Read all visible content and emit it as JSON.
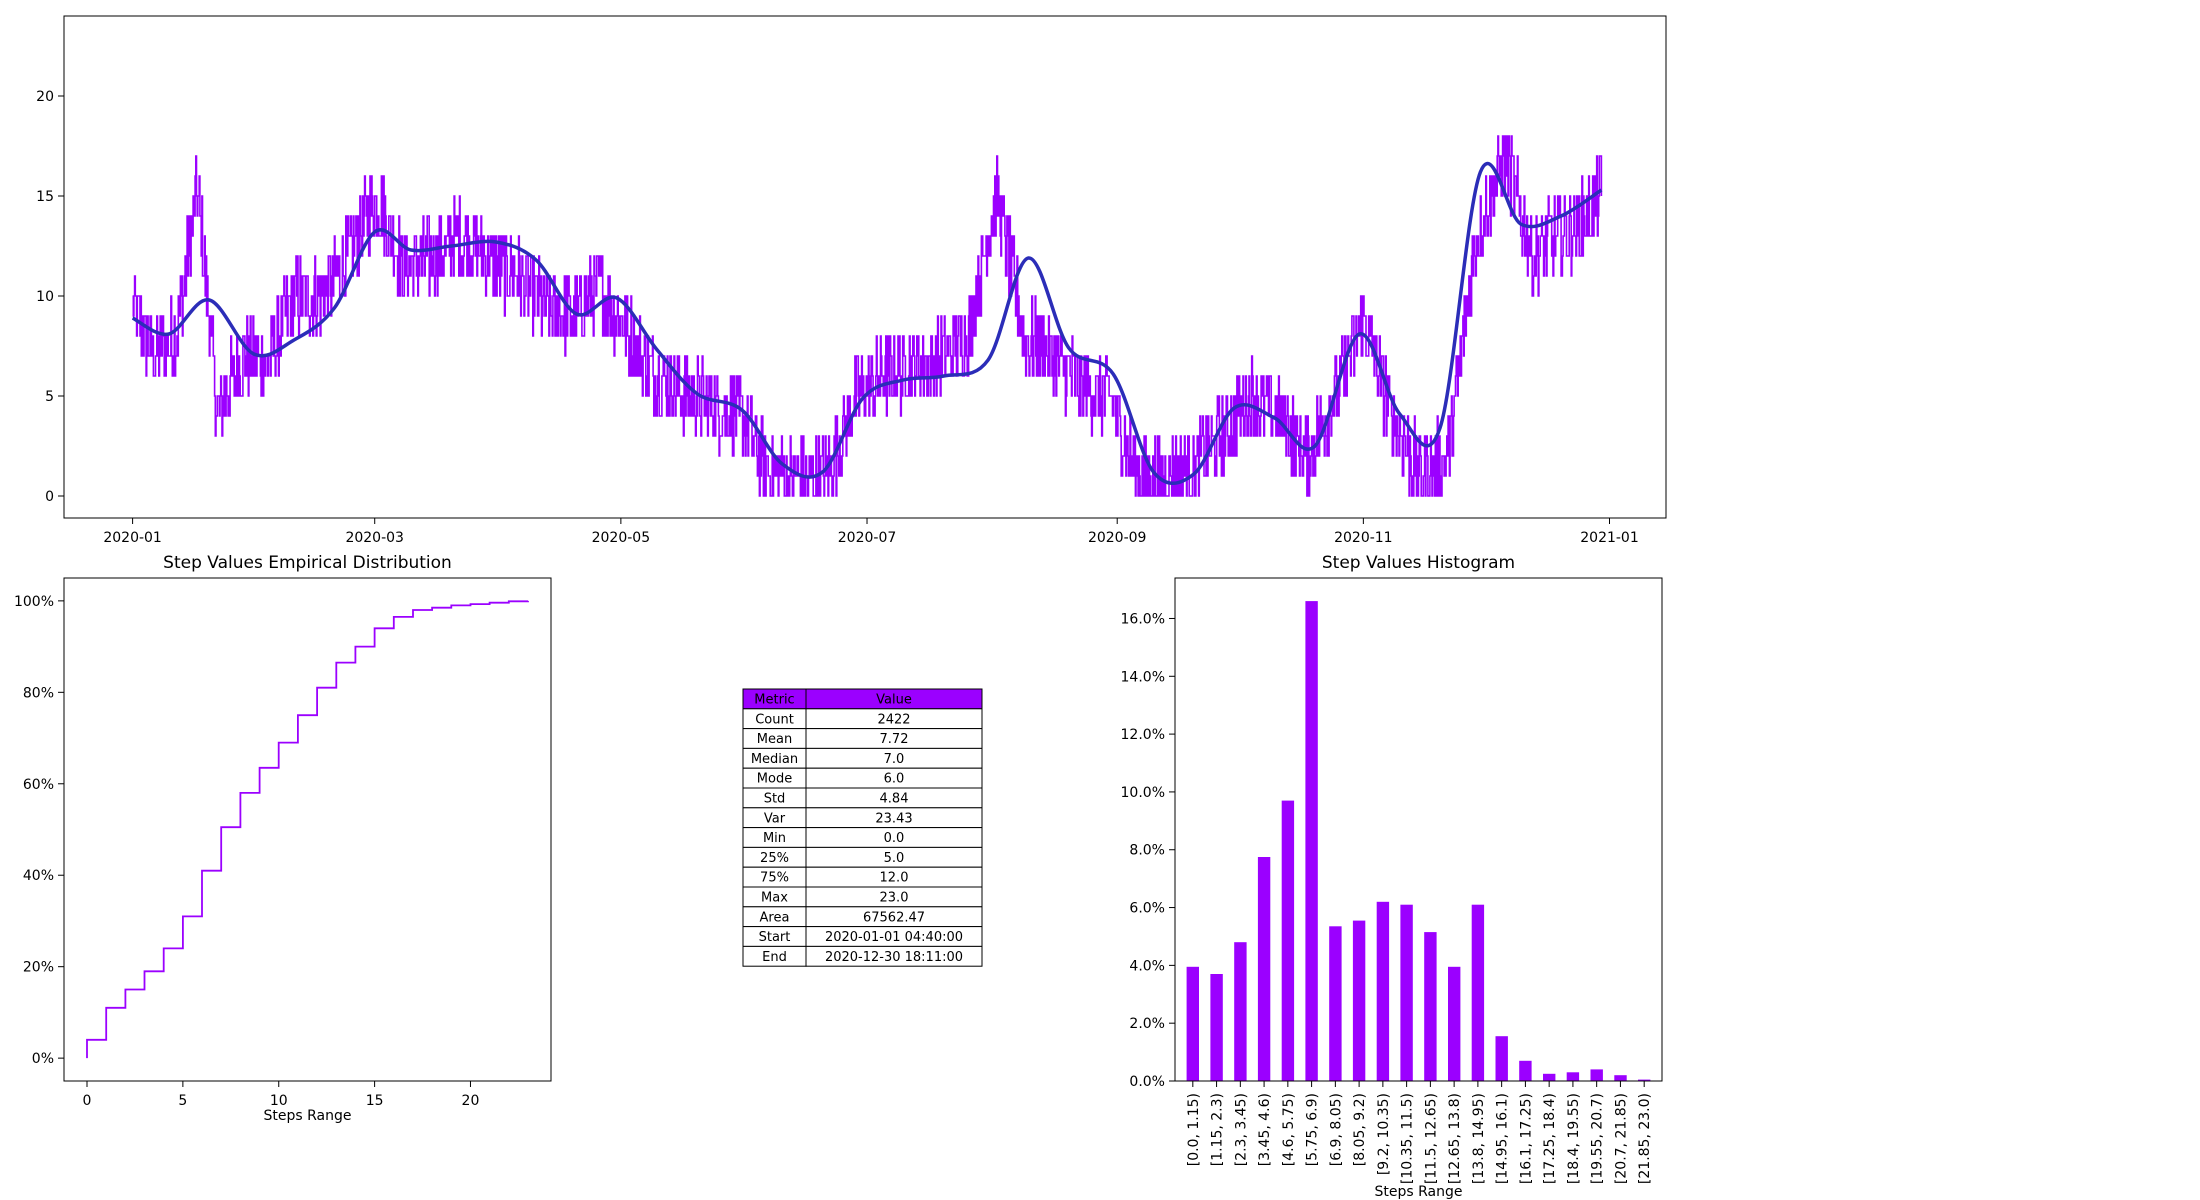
{
  "chart_data": [
    {
      "id": "timeseries",
      "type": "line",
      "title": "",
      "xlabel": "",
      "ylabel": "",
      "x_start": "2020-01-01",
      "x_end": "2020-12-31",
      "xlim": [
        "2019-12-15",
        "2021-01-15"
      ],
      "ylim": [
        -1.1,
        24.0
      ],
      "xticks": [
        "2020-01",
        "2020-03",
        "2020-05",
        "2020-07",
        "2020-09",
        "2020-11",
        "2021-01"
      ],
      "yticks": [
        0,
        5,
        10,
        15,
        20
      ],
      "grid": false,
      "series": [
        {
          "name": "",
          "kind": "step-raw",
          "color": "#9b00ff",
          "anchor_dates": [
            "2020-01-01",
            "2020-01-06",
            "2020-01-12",
            "2020-01-17",
            "2020-01-22",
            "2020-01-28",
            "2020-02-03",
            "2020-02-10",
            "2020-02-17",
            "2020-02-24",
            "2020-03-01",
            "2020-03-08",
            "2020-03-15",
            "2020-03-22",
            "2020-03-29",
            "2020-04-05",
            "2020-04-12",
            "2020-04-19",
            "2020-04-26",
            "2020-05-03",
            "2020-05-10",
            "2020-05-17",
            "2020-05-24",
            "2020-05-31",
            "2020-06-07",
            "2020-06-14",
            "2020-06-21",
            "2020-06-28",
            "2020-07-05",
            "2020-07-12",
            "2020-07-19",
            "2020-07-26",
            "2020-08-02",
            "2020-08-09",
            "2020-08-16",
            "2020-08-23",
            "2020-08-30",
            "2020-09-06",
            "2020-09-13",
            "2020-09-20",
            "2020-09-27",
            "2020-10-04",
            "2020-10-11",
            "2020-10-18",
            "2020-10-25",
            "2020-11-01",
            "2020-11-08",
            "2020-11-15",
            "2020-11-22",
            "2020-11-29",
            "2020-12-06",
            "2020-12-13",
            "2020-12-20",
            "2020-12-27",
            "2020-12-30"
          ],
          "anchor_values": [
            9.5,
            7,
            8,
            15.5,
            4,
            7,
            6.5,
            10,
            10,
            12,
            15,
            11.5,
            12,
            13,
            12,
            11,
            9.5,
            9,
            10.5,
            8,
            6,
            5,
            4.5,
            4,
            1,
            1,
            1,
            5,
            6,
            6.5,
            7,
            8,
            15,
            8,
            7,
            5.5,
            5,
            1,
            1,
            1.5,
            3,
            5,
            4,
            2,
            5,
            9,
            4,
            1,
            2,
            13,
            17,
            12,
            13,
            14,
            15.5
          ],
          "noise_amplitude": 2
        },
        {
          "name": "",
          "kind": "smoothed",
          "color": "#2b2db8",
          "x": [
            "2020-01-01",
            "2020-01-10",
            "2020-01-20",
            "2020-01-31",
            "2020-02-10",
            "2020-02-20",
            "2020-03-01",
            "2020-03-10",
            "2020-03-20",
            "2020-03-31",
            "2020-04-10",
            "2020-04-20",
            "2020-04-30",
            "2020-05-10",
            "2020-05-20",
            "2020-05-31",
            "2020-06-10",
            "2020-06-20",
            "2020-06-30",
            "2020-07-10",
            "2020-07-20",
            "2020-07-31",
            "2020-08-10",
            "2020-08-20",
            "2020-08-31",
            "2020-09-10",
            "2020-09-20",
            "2020-09-30",
            "2020-10-10",
            "2020-10-20",
            "2020-10-31",
            "2020-11-10",
            "2020-11-20",
            "2020-11-30",
            "2020-12-10",
            "2020-12-20",
            "2020-12-30"
          ],
          "y": [
            8.9,
            8.1,
            9.8,
            7.1,
            7.8,
            9.4,
            13.2,
            12.3,
            12.5,
            12.7,
            11.8,
            9.1,
            9.9,
            7.3,
            5.1,
            4.3,
            1.6,
            1.2,
            4.9,
            5.8,
            6.0,
            6.8,
            11.9,
            7.4,
            6.1,
            1.2,
            1.1,
            4.4,
            3.9,
            2.5,
            8.1,
            4.1,
            3.4,
            16.2,
            13.6,
            14.0,
            15.3
          ]
        }
      ]
    },
    {
      "id": "ecdf",
      "type": "line",
      "title": "Step Values Empirical Distribution",
      "xlabel": "Steps Range",
      "ylabel": "",
      "xlim": [
        -1.2,
        24.2
      ],
      "ylim": [
        -0.05,
        1.05
      ],
      "xticks": [
        0,
        5,
        10,
        15,
        20
      ],
      "yticks": [
        0,
        0.2,
        0.4,
        0.6,
        0.8,
        1.0
      ],
      "ytick_labels": [
        "0%",
        "20%",
        "40%",
        "60%",
        "80%",
        "100%"
      ],
      "series": [
        {
          "name": "",
          "color": "#9b00ff",
          "x": [
            0,
            1,
            2,
            3,
            4,
            5,
            6,
            7,
            8,
            9,
            10,
            11,
            12,
            13,
            14,
            15,
            16,
            17,
            18,
            19,
            20,
            21,
            22,
            23
          ],
          "y": [
            0.04,
            0.11,
            0.15,
            0.19,
            0.24,
            0.31,
            0.41,
            0.505,
            0.58,
            0.635,
            0.69,
            0.75,
            0.81,
            0.865,
            0.9,
            0.94,
            0.965,
            0.98,
            0.985,
            0.99,
            0.993,
            0.996,
            0.999,
            1.0
          ]
        }
      ]
    },
    {
      "id": "histogram",
      "type": "bar",
      "title": "Step Values Histogram",
      "xlabel": "Steps Range",
      "ylabel": "",
      "ylim": [
        0,
        0.174
      ],
      "yticks": [
        0,
        0.02,
        0.04,
        0.06,
        0.08,
        0.1,
        0.12,
        0.14,
        0.16
      ],
      "ytick_labels": [
        "0.0%",
        "2.0%",
        "4.0%",
        "6.0%",
        "8.0%",
        "10.0%",
        "12.0%",
        "14.0%",
        "16.0%"
      ],
      "color": "#9b00ff",
      "categories": [
        "[0.0, 1.15)",
        "[1.15, 2.3)",
        "[2.3, 3.45)",
        "[3.45, 4.6)",
        "[4.6, 5.75)",
        "[5.75, 6.9)",
        "[6.9, 8.05)",
        "[8.05, 9.2)",
        "[9.2, 10.35)",
        "[10.35, 11.5)",
        "[11.5, 12.65)",
        "[12.65, 13.8)",
        "[13.8, 14.95)",
        "[14.95, 16.1)",
        "[16.1, 17.25)",
        "[17.25, 18.4)",
        "[18.4, 19.55)",
        "[19.55, 20.7)",
        "[20.7, 21.85)",
        "[21.85, 23.0)"
      ],
      "values": [
        0.0395,
        0.037,
        0.048,
        0.0775,
        0.097,
        0.166,
        0.0535,
        0.0555,
        0.062,
        0.061,
        0.0515,
        0.0395,
        0.061,
        0.0155,
        0.007,
        0.0025,
        0.003,
        0.004,
        0.002,
        0.0005
      ]
    }
  ],
  "table": {
    "header_bg": "#9b00ff",
    "headers": [
      "Metric",
      "Value"
    ],
    "rows": [
      [
        "Count",
        "2422"
      ],
      [
        "Mean",
        "7.72"
      ],
      [
        "Median",
        "7.0"
      ],
      [
        "Mode",
        "6.0"
      ],
      [
        "Std",
        "4.84"
      ],
      [
        "Var",
        "23.43"
      ],
      [
        "Min",
        "0.0"
      ],
      [
        "25%",
        "5.0"
      ],
      [
        "75%",
        "12.0"
      ],
      [
        "Max",
        "23.0"
      ],
      [
        "Area",
        "67562.47"
      ],
      [
        "Start",
        "2020-01-01 04:40:00"
      ],
      [
        "End",
        "2020-12-30 18:11:00"
      ]
    ]
  }
}
